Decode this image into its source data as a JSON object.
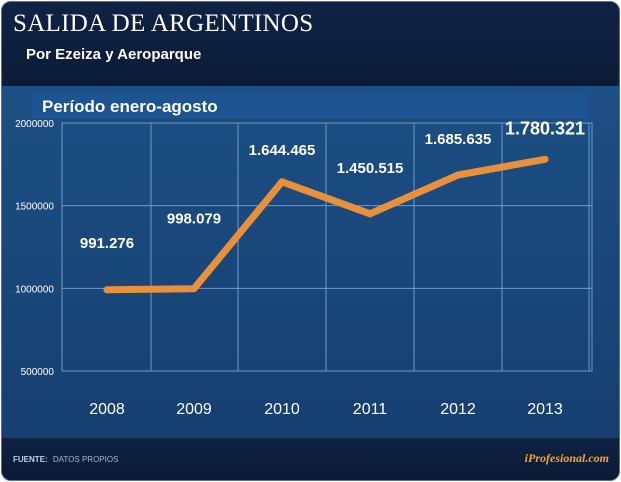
{
  "header": {
    "title": "SALIDA DE ARGENTINOS",
    "subtitle": "Por Ezeiza y Aeroparque"
  },
  "footer": {
    "source_label": "FUENTE:",
    "source_text": "DATOS PROPIOS",
    "brand": "iProfesional.com"
  },
  "colors": {
    "line": "#e8913a",
    "grid": "#6f9ac8",
    "band": "#1c5390"
  },
  "chart_data": {
    "type": "line",
    "title": "Período enero-agosto",
    "xlabel": "",
    "ylabel": "",
    "categories": [
      "2008",
      "2009",
      "2010",
      "2011",
      "2012",
      "2013"
    ],
    "values": [
      991276,
      998079,
      1644465,
      1450515,
      1685635,
      1780321
    ],
    "data_labels": [
      "991.276",
      "998.079",
      "1.644.465",
      "1.450.515",
      "1.685.635",
      "1.780.321"
    ],
    "ylim": [
      500000,
      2000000
    ],
    "yticks": [
      500000,
      1000000,
      1500000,
      2000000
    ],
    "ytick_labels": [
      "500000",
      "1000000",
      "1500000",
      "2000000"
    ],
    "grid": true,
    "series": [
      {
        "name": "Salida de argentinos",
        "values": [
          991276,
          998079,
          1644465,
          1450515,
          1685635,
          1780321
        ]
      }
    ]
  }
}
